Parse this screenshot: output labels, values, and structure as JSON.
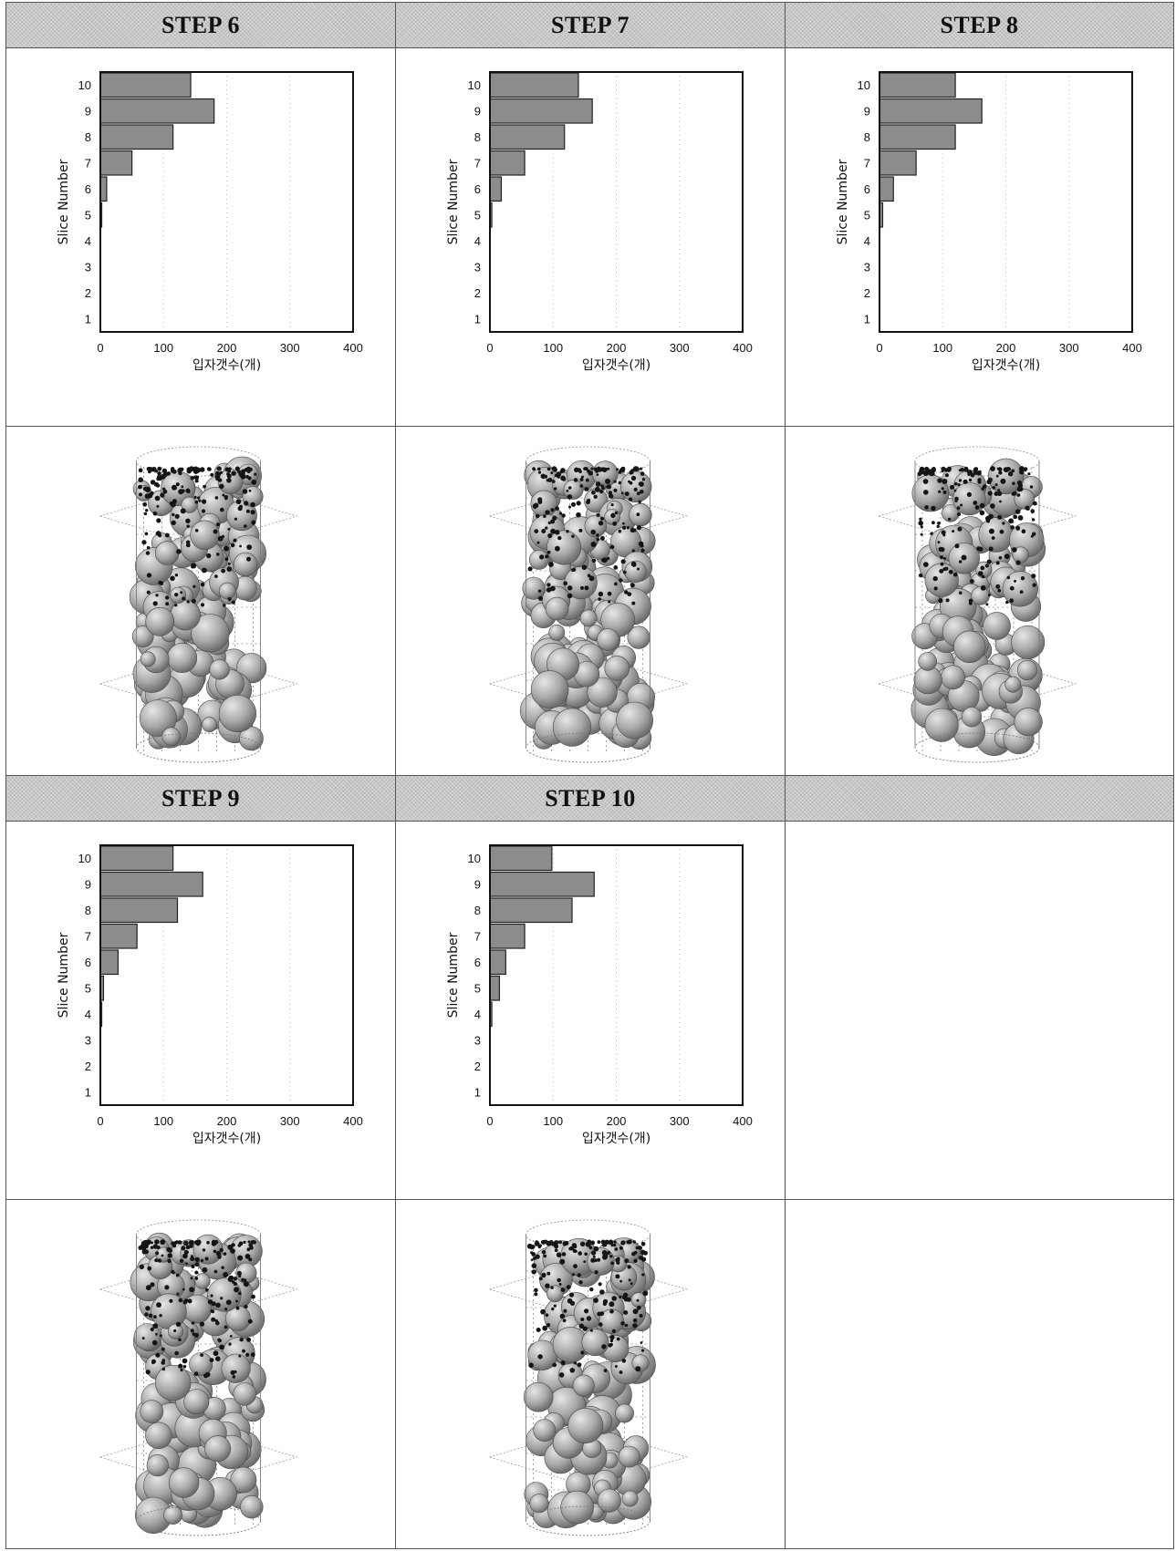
{
  "steps": [
    {
      "id": "s6",
      "label": "STEP 6"
    },
    {
      "id": "s7",
      "label": "STEP 7"
    },
    {
      "id": "s8",
      "label": "STEP 8"
    },
    {
      "id": "s9",
      "label": "STEP 9"
    },
    {
      "id": "s10",
      "label": "STEP 10"
    }
  ],
  "chart_data": [
    {
      "type": "bar",
      "orientation": "horizontal",
      "title": "STEP 6",
      "categories": [
        "1",
        "2",
        "3",
        "4",
        "5",
        "6",
        "7",
        "8",
        "9",
        "10"
      ],
      "values": [
        0,
        0,
        0,
        0,
        2,
        10,
        50,
        115,
        180,
        143
      ],
      "xlabel": "입자갯수(개)",
      "ylabel": "Slice Number",
      "xlim": [
        0,
        400
      ],
      "xticks": [
        "0",
        "100",
        "200",
        "300",
        "400"
      ]
    },
    {
      "type": "bar",
      "orientation": "horizontal",
      "title": "STEP 7",
      "categories": [
        "1",
        "2",
        "3",
        "4",
        "5",
        "6",
        "7",
        "8",
        "9",
        "10"
      ],
      "values": [
        0,
        0,
        0,
        0,
        3,
        18,
        55,
        118,
        162,
        140
      ],
      "xlabel": "입자갯수(개)",
      "ylabel": "Slice Number",
      "xlim": [
        0,
        400
      ],
      "xticks": [
        "0",
        "100",
        "200",
        "300",
        "400"
      ]
    },
    {
      "type": "bar",
      "orientation": "horizontal",
      "title": "STEP 8",
      "categories": [
        "1",
        "2",
        "3",
        "4",
        "5",
        "6",
        "7",
        "8",
        "9",
        "10"
      ],
      "values": [
        0,
        0,
        0,
        0,
        5,
        22,
        58,
        120,
        162,
        120
      ],
      "xlabel": "입자갯수(개)",
      "ylabel": "Slice Number",
      "xlim": [
        0,
        400
      ],
      "xticks": [
        "0",
        "100",
        "200",
        "300",
        "400"
      ]
    },
    {
      "type": "bar",
      "orientation": "horizontal",
      "title": "STEP 9",
      "categories": [
        "1",
        "2",
        "3",
        "4",
        "5",
        "6",
        "7",
        "8",
        "9",
        "10"
      ],
      "values": [
        0,
        0,
        0,
        2,
        5,
        28,
        58,
        122,
        162,
        115
      ],
      "xlabel": "입자갯수(개)",
      "ylabel": "Slice Number",
      "xlim": [
        0,
        400
      ],
      "xticks": [
        "0",
        "100",
        "200",
        "300",
        "400"
      ]
    },
    {
      "type": "bar",
      "orientation": "horizontal",
      "title": "STEP 10",
      "categories": [
        "1",
        "2",
        "3",
        "4",
        "5",
        "6",
        "7",
        "8",
        "9",
        "10"
      ],
      "values": [
        0,
        0,
        0,
        3,
        15,
        25,
        55,
        130,
        165,
        98
      ],
      "xlabel": "입자갯수(개)",
      "ylabel": "Slice Number",
      "xlim": [
        0,
        400
      ],
      "xticks": [
        "0",
        "100",
        "200",
        "300",
        "400"
      ]
    }
  ],
  "style": {
    "bar_fill": "#8c8c8c",
    "bar_stroke": "#222222",
    "grid_color": "#bdbdbd",
    "sphere_light": "#e6e6e6",
    "sphere_dark": "#6e6e6e",
    "fine_particle": "#151515"
  }
}
